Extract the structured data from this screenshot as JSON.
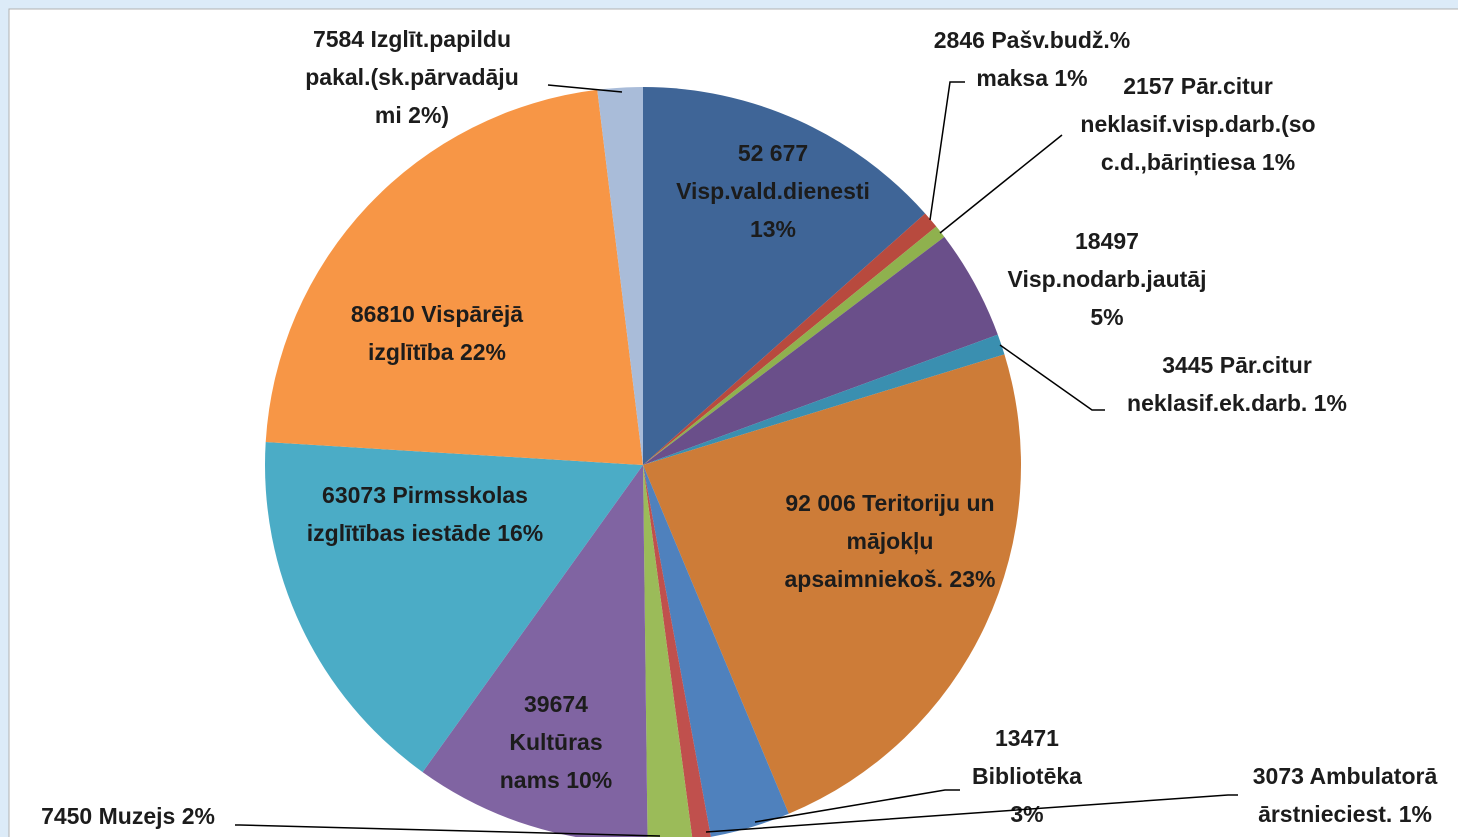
{
  "chart_data": {
    "type": "pie",
    "values": [
      52677,
      2846,
      2157,
      18497,
      3445,
      92006,
      13471,
      3073,
      7450,
      39674,
      63073,
      86810,
      7584
    ],
    "value_labels": [
      [
        "52 677",
        "Visp.vald.dienesti",
        "13%"
      ],
      [
        "2846 Pašv.budž.%",
        "maksa 1%"
      ],
      [
        "2157 Pār.citur",
        "neklasif.visp.darb.(so",
        "c.d.,bāriņtiesa 1%"
      ],
      [
        "18497",
        "Visp.nodarb.jautāj",
        "5%"
      ],
      [
        "3445 Pār.citur",
        "neklasif.ek.darb. 1%"
      ],
      [
        "92 006 Teritoriju un",
        "mājokļu",
        "apsaimniekoš. 23%"
      ],
      [
        "13471",
        "Bibliotēka",
        "3%"
      ],
      [
        "3073 Ambulatorā",
        "ārstnieciest. 1%"
      ],
      [
        "7450 Muzejs 2%"
      ],
      [
        "39674",
        "Kultūras",
        "nams 10%"
      ],
      [
        "63073  Pirmsskolas",
        "izglītības iestāde 16%"
      ],
      [
        "86810 Vispārējā",
        "izglītība 22%"
      ],
      [
        "7584 Izglīt.papildu",
        "pakal.(sk.pārvadāju",
        "mi 2%)"
      ]
    ],
    "colors": [
      "#3f6597",
      "#b84a3e",
      "#8fb14e",
      "#6a4f8a",
      "#3a8fb0",
      "#cd7c38",
      "#4f81bd",
      "#c0504d",
      "#9bbb59",
      "#8064a2",
      "#4bacc6",
      "#f79646",
      "#a9bcd9"
    ]
  }
}
